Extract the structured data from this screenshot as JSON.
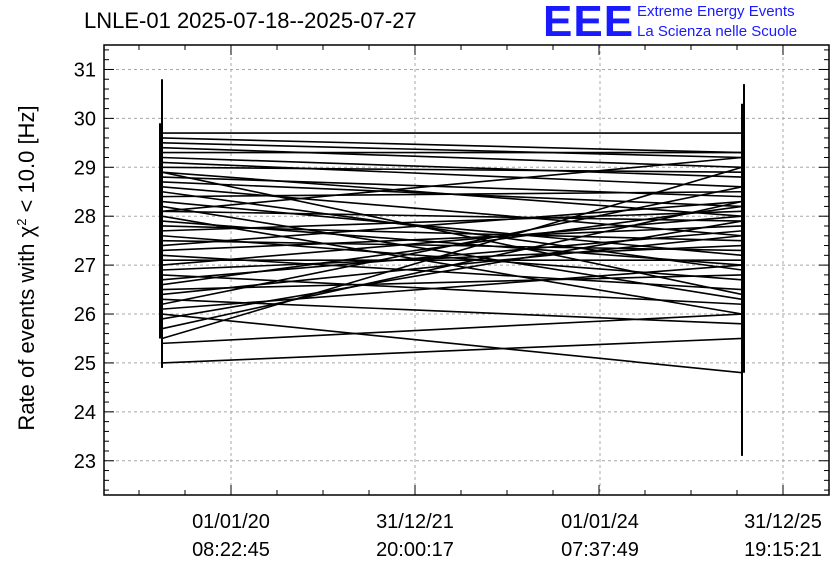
{
  "title": "LNLE-01 2025-07-18--2025-07-27",
  "logo": {
    "mark": "EEE",
    "line1": "Extreme Energy Events",
    "line2": "La Scienza nelle Scuole",
    "color": "#1a1aff"
  },
  "chart_data": {
    "type": "line",
    "title": "LNLE-01 2025-07-18--2025-07-27",
    "ylabel_prefix": "Rate of events with χ",
    "ylabel_sup": "2",
    "ylabel_suffix": " < 10.0 [Hz]",
    "xlabel": "",
    "ylim": [
      22.3,
      31.5
    ],
    "y_ticks": [
      23,
      24,
      25,
      26,
      27,
      28,
      29,
      30,
      31
    ],
    "x_ticks": [
      {
        "date": "01/01/20",
        "time": "08:22:45"
      },
      {
        "date": "31/12/21",
        "time": "20:00:17"
      },
      {
        "date": "01/01/24",
        "time": "07:37:49"
      },
      {
        "date": "31/12/25",
        "time": "19:15:21"
      }
    ],
    "grid": true,
    "left_error_bar": [
      24.9,
      30.8
    ],
    "right_error_bars": [
      [
        23.1,
        30.3
      ],
      [
        24.8,
        30.7
      ]
    ],
    "series": [
      {
        "values": [
          29.7,
          29.7
        ]
      },
      {
        "values": [
          29.6,
          29.3
        ]
      },
      {
        "values": [
          29.5,
          29.2
        ]
      },
      {
        "values": [
          29.4,
          29.0
        ]
      },
      {
        "values": [
          29.3,
          29.3
        ]
      },
      {
        "values": [
          29.2,
          28.8
        ]
      },
      {
        "values": [
          29.1,
          28.6
        ]
      },
      {
        "values": [
          29.0,
          28.9
        ]
      },
      {
        "values": [
          28.9,
          28.0
        ]
      },
      {
        "values": [
          28.8,
          28.4
        ]
      },
      {
        "values": [
          28.7,
          28.2
        ]
      },
      {
        "values": [
          28.6,
          27.6
        ]
      },
      {
        "values": [
          28.5,
          26.9
        ]
      },
      {
        "values": [
          28.4,
          28.5
        ]
      },
      {
        "values": [
          28.3,
          27.2
        ]
      },
      {
        "values": [
          28.2,
          26.3
        ]
      },
      {
        "values": [
          28.1,
          27.9
        ]
      },
      {
        "values": [
          28.0,
          26.0
        ]
      },
      {
        "values": [
          27.9,
          27.0
        ]
      },
      {
        "values": [
          27.8,
          27.5
        ]
      },
      {
        "values": [
          27.7,
          28.1
        ]
      },
      {
        "values": [
          27.6,
          26.7
        ]
      },
      {
        "values": [
          27.5,
          27.3
        ]
      },
      {
        "values": [
          27.4,
          28.3
        ]
      },
      {
        "values": [
          27.3,
          27.8
        ]
      },
      {
        "values": [
          27.2,
          26.5
        ]
      },
      {
        "values": [
          27.1,
          27.1
        ]
      },
      {
        "values": [
          27.0,
          28.0
        ]
      },
      {
        "values": [
          26.9,
          27.4
        ]
      },
      {
        "values": [
          26.8,
          26.2
        ]
      },
      {
        "values": [
          26.7,
          27.7
        ]
      },
      {
        "values": [
          26.6,
          28.2
        ]
      },
      {
        "values": [
          26.5,
          26.8
        ]
      },
      {
        "values": [
          26.4,
          27.6
        ]
      },
      {
        "values": [
          26.3,
          25.8
        ]
      },
      {
        "values": [
          26.2,
          28.6
        ]
      },
      {
        "values": [
          26.1,
          27.0
        ]
      },
      {
        "values": [
          26.0,
          24.8
        ]
      },
      {
        "values": [
          25.9,
          27.9
        ]
      },
      {
        "values": [
          25.7,
          28.3
        ]
      },
      {
        "values": [
          25.5,
          29.0
        ]
      },
      {
        "values": [
          25.4,
          26.0
        ]
      },
      {
        "values": [
          25.0,
          25.5
        ]
      },
      {
        "values": [
          28.9,
          26.4
        ]
      },
      {
        "values": [
          28.1,
          29.2
        ]
      }
    ]
  }
}
